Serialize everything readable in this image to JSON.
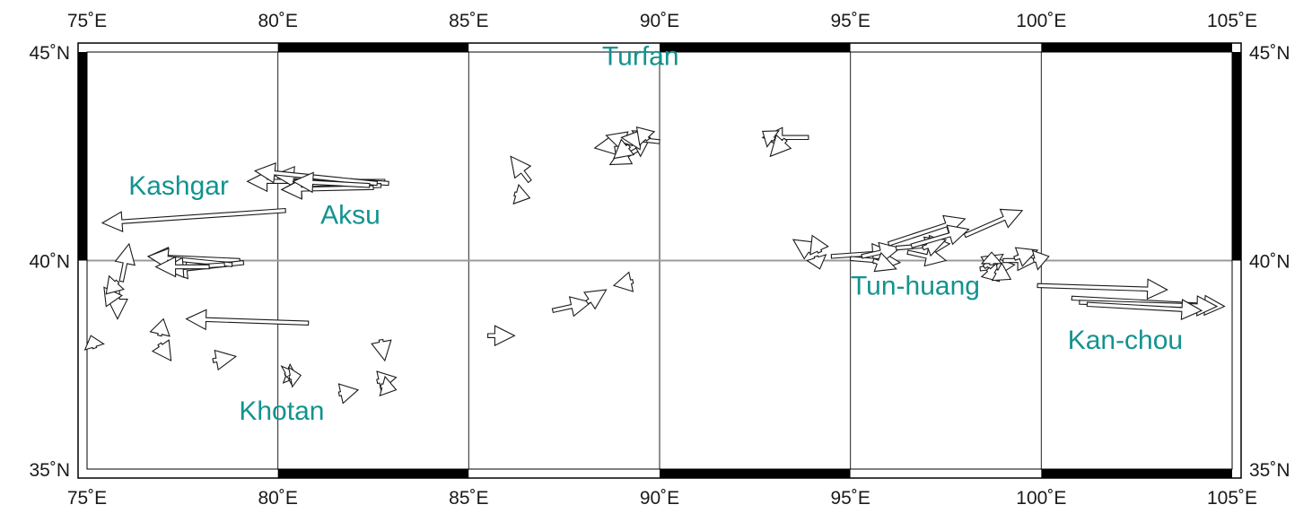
{
  "map": {
    "lon_range": [
      75,
      105
    ],
    "lat_range": [
      35,
      45
    ],
    "lon_ticks": [
      {
        "lon": 75,
        "label": "75˚E"
      },
      {
        "lon": 80,
        "label": "80˚E"
      },
      {
        "lon": 85,
        "label": "85˚E"
      },
      {
        "lon": 90,
        "label": "90˚E"
      },
      {
        "lon": 95,
        "label": "95˚E"
      },
      {
        "lon": 100,
        "label": "100˚E"
      },
      {
        "lon": 105,
        "label": "105˚E"
      }
    ],
    "lat_ticks": [
      {
        "lat": 45,
        "label": "45˚N"
      },
      {
        "lat": 40,
        "label": "40˚N"
      },
      {
        "lat": 35,
        "label": "35˚N"
      }
    ],
    "places": [
      {
        "name": "Turfan",
        "lon": 89.5,
        "lat": 44.9
      },
      {
        "name": "Kashgar",
        "lon": 77.4,
        "lat": 41.8
      },
      {
        "name": "Aksu",
        "lon": 81.9,
        "lat": 41.1
      },
      {
        "name": "Tun-huang",
        "lon": 96.7,
        "lat": 39.4
      },
      {
        "name": "Kan-chou",
        "lon": 102.2,
        "lat": 38.1
      },
      {
        "name": "Khotan",
        "lon": 80.1,
        "lat": 36.4
      }
    ],
    "label_color": "#12938f",
    "arrows": [
      {
        "lon": 80.2,
        "lat": 41.2,
        "dlon": -4.8,
        "dlat": -0.3
      },
      {
        "lon": 82.8,
        "lat": 41.9,
        "dlon": -3.6,
        "dlat": 0.0
      },
      {
        "lon": 82.9,
        "lat": 41.85,
        "dlon": -3.0,
        "dlat": 0.2
      },
      {
        "lon": 82.7,
        "lat": 41.8,
        "dlon": -2.6,
        "dlat": -0.1
      },
      {
        "lon": 82.6,
        "lat": 41.85,
        "dlon": -3.2,
        "dlat": 0.3
      },
      {
        "lon": 82.5,
        "lat": 41.75,
        "dlon": -2.4,
        "dlat": -0.05
      },
      {
        "lon": 82.4,
        "lat": 41.8,
        "dlon": -2.0,
        "dlat": 0.1
      },
      {
        "lon": 79.0,
        "lat": 40.0,
        "dlon": -2.4,
        "dlat": 0.1
      },
      {
        "lon": 79.1,
        "lat": 39.95,
        "dlon": -2.0,
        "dlat": -0.2
      },
      {
        "lon": 78.8,
        "lat": 39.9,
        "dlon": -2.2,
        "dlat": 0.2
      },
      {
        "lon": 78.6,
        "lat": 39.9,
        "dlon": -1.6,
        "dlat": -0.1
      },
      {
        "lon": 78.2,
        "lat": 39.85,
        "dlon": -1.4,
        "dlat": 0.0
      },
      {
        "lon": 80.8,
        "lat": 38.5,
        "dlon": -3.2,
        "dlat": 0.1
      },
      {
        "lon": 75.9,
        "lat": 39.5,
        "dlon": 0.2,
        "dlat": 0.9
      },
      {
        "lon": 75.8,
        "lat": 39.4,
        "dlon": 0.0,
        "dlat": -0.8
      },
      {
        "lon": 75.7,
        "lat": 39.3,
        "dlon": -0.2,
        "dlat": -0.4
      },
      {
        "lon": 75.8,
        "lat": 39.5,
        "dlon": -0.3,
        "dlat": -0.3
      },
      {
        "lon": 75.2,
        "lat": 37.9,
        "dlon": -0.1,
        "dlat": 0.3
      },
      {
        "lon": 76.9,
        "lat": 38.2,
        "dlon": 0.1,
        "dlat": 0.4
      },
      {
        "lon": 76.9,
        "lat": 38.0,
        "dlon": 0.3,
        "dlat": -0.4
      },
      {
        "lon": 78.3,
        "lat": 37.6,
        "dlon": 0.6,
        "dlat": 0.1
      },
      {
        "lon": 80.2,
        "lat": 37.3,
        "dlon": 0.3,
        "dlat": -0.1
      },
      {
        "lon": 80.2,
        "lat": 37.25,
        "dlon": 0.2,
        "dlat": 0.1
      },
      {
        "lon": 80.3,
        "lat": 37.2,
        "dlon": 0.3,
        "dlat": 0.05
      },
      {
        "lon": 81.6,
        "lat": 36.8,
        "dlon": 0.5,
        "dlat": 0.1
      },
      {
        "lon": 82.7,
        "lat": 38.1,
        "dlon": 0.1,
        "dlat": -0.5
      },
      {
        "lon": 82.6,
        "lat": 37.1,
        "dlon": 0.5,
        "dlat": 0.1
      },
      {
        "lon": 82.7,
        "lat": 37.0,
        "dlon": 0.4,
        "dlat": -0.1
      },
      {
        "lon": 86.6,
        "lat": 41.9,
        "dlon": -0.5,
        "dlat": 0.6
      },
      {
        "lon": 86.2,
        "lat": 41.6,
        "dlon": 0.4,
        "dlat": -0.1
      },
      {
        "lon": 85.5,
        "lat": 38.2,
        "dlon": 0.7,
        "dlat": 0.0
      },
      {
        "lon": 87.2,
        "lat": 38.8,
        "dlon": 1.0,
        "dlat": 0.2
      },
      {
        "lon": 88.1,
        "lat": 39.0,
        "dlon": 0.5,
        "dlat": 0.3
      },
      {
        "lon": 89.3,
        "lat": 39.5,
        "dlon": -0.5,
        "dlat": -0.1
      },
      {
        "lon": 89.6,
        "lat": 42.9,
        "dlon": -1.3,
        "dlat": -0.2
      },
      {
        "lon": 89.5,
        "lat": 42.7,
        "dlon": -0.8,
        "dlat": -0.4
      },
      {
        "lon": 89.3,
        "lat": 42.8,
        "dlon": -0.7,
        "dlat": 0.2
      },
      {
        "lon": 89.4,
        "lat": 42.9,
        "dlon": 0.3,
        "dlat": 0.2
      },
      {
        "lon": 89.5,
        "lat": 43.0,
        "dlon": 0.0,
        "dlat": -0.5
      },
      {
        "lon": 89.2,
        "lat": 42.75,
        "dlon": -0.4,
        "dlat": -0.3
      },
      {
        "lon": 90.0,
        "lat": 42.85,
        "dlon": -1.0,
        "dlat": 0.1
      },
      {
        "lon": 89.7,
        "lat": 42.9,
        "dlon": -0.3,
        "dlat": 0.3
      },
      {
        "lon": 93.9,
        "lat": 42.95,
        "dlon": -1.2,
        "dlat": 0.0
      },
      {
        "lon": 93.3,
        "lat": 42.9,
        "dlon": -0.4,
        "dlat": -0.4
      },
      {
        "lon": 93.0,
        "lat": 42.9,
        "dlon": -0.3,
        "dlat": 0.2
      },
      {
        "lon": 94.0,
        "lat": 40.2,
        "dlon": -0.5,
        "dlat": 0.3
      },
      {
        "lon": 94.1,
        "lat": 40.1,
        "dlon": 0.1,
        "dlat": -0.3
      },
      {
        "lon": 94.2,
        "lat": 40.2,
        "dlon": -0.2,
        "dlat": 0.4
      },
      {
        "lon": 94.5,
        "lat": 40.1,
        "dlon": 1.6,
        "dlat": 0.1
      },
      {
        "lon": 95.0,
        "lat": 40.05,
        "dlon": 1.3,
        "dlat": -0.1
      },
      {
        "lon": 95.3,
        "lat": 40.1,
        "dlon": 1.0,
        "dlat": 0.2
      },
      {
        "lon": 95.6,
        "lat": 40.0,
        "dlon": 0.6,
        "dlat": -0.2
      },
      {
        "lon": 96.0,
        "lat": 40.4,
        "dlon": 2.0,
        "dlat": 0.6
      },
      {
        "lon": 96.2,
        "lat": 40.3,
        "dlon": 1.4,
        "dlat": 0.1
      },
      {
        "lon": 96.5,
        "lat": 40.2,
        "dlon": 1.0,
        "dlat": -0.2
      },
      {
        "lon": 96.9,
        "lat": 40.3,
        "dlon": 0.6,
        "dlat": 0.2
      },
      {
        "lon": 96.6,
        "lat": 40.35,
        "dlon": 1.5,
        "dlat": 0.4
      },
      {
        "lon": 98.0,
        "lat": 40.6,
        "dlon": 1.5,
        "dlat": 0.6
      },
      {
        "lon": 98.4,
        "lat": 39.8,
        "dlon": 0.9,
        "dlat": 0.1
      },
      {
        "lon": 98.5,
        "lat": 39.85,
        "dlon": 0.5,
        "dlat": 0.3
      },
      {
        "lon": 98.6,
        "lat": 39.8,
        "dlon": 0.3,
        "dlat": -0.3
      },
      {
        "lon": 98.7,
        "lat": 39.9,
        "dlon": 0.0,
        "dlat": 0.3
      },
      {
        "lon": 98.8,
        "lat": 39.75,
        "dlon": 0.4,
        "dlat": -0.2
      },
      {
        "lon": 99.0,
        "lat": 40.0,
        "dlon": 0.9,
        "dlat": 0.0
      },
      {
        "lon": 99.3,
        "lat": 40.05,
        "dlon": 0.6,
        "dlat": 0.2
      },
      {
        "lon": 99.8,
        "lat": 40.0,
        "dlon": 0.4,
        "dlat": 0.1
      },
      {
        "lon": 99.9,
        "lat": 39.4,
        "dlon": 3.4,
        "dlat": -0.1
      },
      {
        "lon": 100.8,
        "lat": 39.1,
        "dlon": 4.0,
        "dlat": -0.2
      },
      {
        "lon": 101.0,
        "lat": 39.0,
        "dlon": 3.6,
        "dlat": -0.1
      },
      {
        "lon": 101.2,
        "lat": 38.95,
        "dlon": 3.0,
        "dlat": -0.15
      }
    ]
  }
}
